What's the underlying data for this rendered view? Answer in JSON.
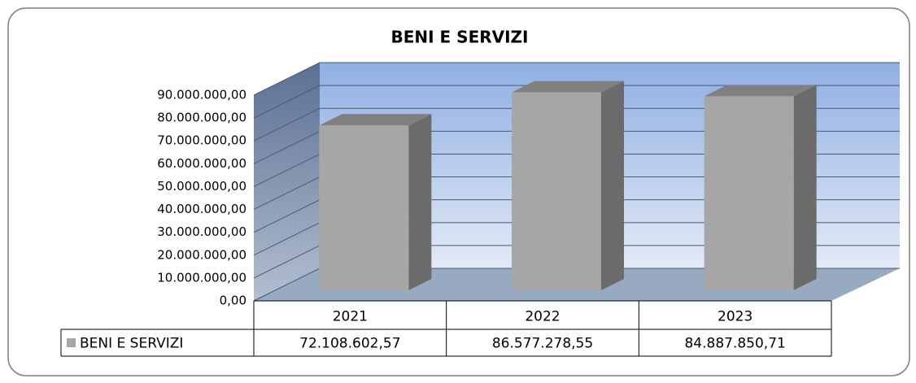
{
  "chart_data": {
    "type": "bar3d",
    "title": "BENI E SERVIZI",
    "categories": [
      "2021",
      "2022",
      "2023"
    ],
    "series": [
      {
        "name": "BENI E SERVIZI",
        "color": "#a6a6a6",
        "values": [
          72108602.57,
          86577278.55,
          84887850.71
        ],
        "value_labels": [
          "72.108.602,57",
          "86.577.278,55",
          "84.887.850,71"
        ]
      }
    ],
    "ylim": [
      0,
      90000000
    ],
    "yticks": [
      {
        "value": 0,
        "label": "0,00"
      },
      {
        "value": 10000000,
        "label": "10.000.000,00"
      },
      {
        "value": 20000000,
        "label": "20.000.000,00"
      },
      {
        "value": 30000000,
        "label": "30.000.000,00"
      },
      {
        "value": 40000000,
        "label": "40.000.000,00"
      },
      {
        "value": 50000000,
        "label": "50.000.000,00"
      },
      {
        "value": 60000000,
        "label": "60.000.000,00"
      },
      {
        "value": 70000000,
        "label": "70.000.000,00"
      },
      {
        "value": 80000000,
        "label": "80.000.000,00"
      },
      {
        "value": 90000000,
        "label": "90.000.000,00"
      }
    ],
    "grid": true,
    "legend": "data-table"
  }
}
